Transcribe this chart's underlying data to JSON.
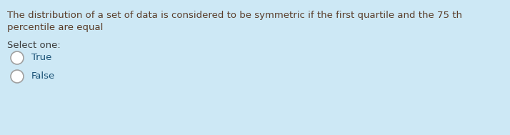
{
  "background_color": "#cde8f5",
  "question_line1": "The distribution of a set of data is considered to be symmetric if the first quartile and the 75 th",
  "question_line2": "percentile are equal",
  "select_label": "Select one:",
  "options": [
    "True",
    "False"
  ],
  "question_text_color": "#5a3e2b",
  "select_color": "#3a3a3a",
  "option_text_color": "#1a5276",
  "circle_fill_color": "#d6ecf5",
  "circle_edge_color": "#a0a0a0",
  "question_fontsize": 9.5,
  "select_fontsize": 9.5,
  "option_fontsize": 9.5,
  "figsize": [
    7.14,
    1.89
  ],
  "dpi": 100
}
